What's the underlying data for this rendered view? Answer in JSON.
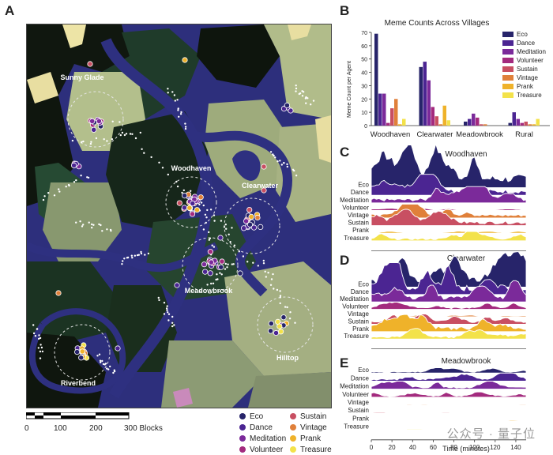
{
  "panels": {
    "a": "A",
    "b": "B",
    "c": "C",
    "d": "D",
    "e": "E"
  },
  "map": {
    "village_labels": {
      "sunny_glade": "Sunny Glade",
      "woodhaven": "Woodhaven",
      "clearwater": "Clearwater",
      "meadowbrook": "Meadowbrook",
      "riverbend": "Riverbend",
      "hilltop": "Hilltop"
    },
    "scale": {
      "ticks": [
        "0",
        "100",
        "200",
        "300 Blocks"
      ]
    },
    "legend": [
      {
        "label": "Eco",
        "color": "#27246a"
      },
      {
        "label": "Dance",
        "color": "#4b2592"
      },
      {
        "label": "Meditation",
        "color": "#7b2a9a"
      },
      {
        "label": "Volunteer",
        "color": "#a32a7e"
      },
      {
        "label": "Sustain",
        "color": "#c84f62"
      },
      {
        "label": "Vintage",
        "color": "#e0803a"
      },
      {
        "label": "Prank",
        "color": "#efb22a"
      },
      {
        "label": "Treasure",
        "color": "#f3e24a"
      }
    ]
  },
  "chart_data": [
    {
      "type": "bar",
      "title": "Meme Counts Across Villages",
      "ylabel": "Meme Count per Agent",
      "ylim": [
        0,
        70
      ],
      "yticks": [
        "0",
        "10",
        "20",
        "30",
        "40",
        "50",
        "60",
        "70"
      ],
      "categories": [
        "Woodhaven",
        "Clearwater",
        "Meadowbrook",
        "Rural"
      ],
      "series": [
        {
          "name": "Eco",
          "values": [
            69,
            44,
            3,
            2
          ]
        },
        {
          "name": "Dance",
          "values": [
            24,
            48,
            5,
            10
          ]
        },
        {
          "name": "Meditation",
          "values": [
            24,
            34,
            9,
            5
          ]
        },
        {
          "name": "Volunteer",
          "values": [
            2,
            14,
            6,
            2
          ]
        },
        {
          "name": "Sustain",
          "values": [
            13,
            7,
            1,
            3
          ]
        },
        {
          "name": "Vintage",
          "values": [
            20,
            1,
            1,
            1
          ]
        },
        {
          "name": "Prank",
          "values": [
            1,
            15,
            0,
            1
          ]
        },
        {
          "name": "Treasure",
          "values": [
            5,
            4,
            0,
            5
          ]
        }
      ]
    },
    {
      "type": "area",
      "title": "Woodhaven",
      "series_labels": [
        "Eco",
        "Dance",
        "Meditation",
        "Volunteer",
        "Vintage",
        "Sustain",
        "Prank",
        "Treasure"
      ],
      "amplitude": [
        1.0,
        0.45,
        0.35,
        0.05,
        0.3,
        0.35,
        0.05,
        0.2
      ]
    },
    {
      "type": "area",
      "title": "Clearwater",
      "series_labels": [
        "Eco",
        "Dance",
        "Meditation",
        "Volunteer",
        "Vintage",
        "Sustain",
        "Prank",
        "Treasure"
      ],
      "amplitude": [
        1.0,
        0.9,
        0.6,
        0.2,
        0.05,
        0.3,
        0.5,
        0.3
      ]
    },
    {
      "type": "area",
      "title": "Meadowbrook",
      "series_labels": [
        "Eco",
        "Dance",
        "Meditation",
        "Volunteer",
        "Vintage",
        "Sustain",
        "Prank",
        "Treasure"
      ],
      "amplitude": [
        0.3,
        0.45,
        0.45,
        0.3,
        0.05,
        0.05,
        0.05,
        0.05
      ],
      "xlabel": "Time (minutes)",
      "xticks": [
        "0",
        "20",
        "40",
        "60",
        "80",
        "100",
        "120",
        "140"
      ],
      "xlim": [
        0,
        150
      ]
    }
  ],
  "watermark": "公众号 · 量子位"
}
